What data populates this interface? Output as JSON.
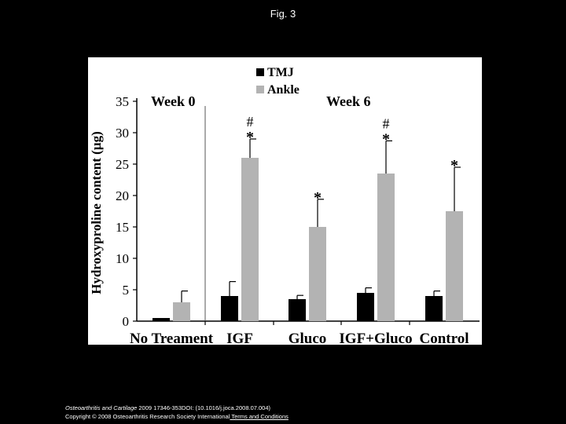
{
  "figure": {
    "title": "Fig. 3"
  },
  "caption": {
    "journal": "Osteoarthritis and Cartilage",
    "citation": " 2009 17346-353DOI: (10.1016/j.joca.2008.07.004)",
    "copyright": "Copyright © 2008 Osteoarthritis Research Society International",
    "terms_link": " Terms and Conditions"
  },
  "chart_data": {
    "type": "bar",
    "ylabel": "Hydroxyproline content (µg)",
    "ylim": [
      0,
      35
    ],
    "yticks": [
      0,
      5,
      10,
      15,
      20,
      25,
      30,
      35
    ],
    "categories": [
      "No Treament",
      "IGF",
      "Gluco",
      "IGF+Gluco",
      "Control"
    ],
    "section_labels": [
      "Week 0",
      "Week 6"
    ],
    "legend": {
      "position": "top-center"
    },
    "colors": {
      "TMJ": "#000000",
      "Ankle": "#b3b3b3",
      "background": "#ffffff"
    },
    "series": [
      {
        "name": "TMJ",
        "values": [
          0.5,
          4.0,
          3.5,
          4.5,
          4.0
        ],
        "errors": [
          0,
          2.3,
          0.6,
          0.8,
          0.8
        ]
      },
      {
        "name": "Ankle",
        "values": [
          3.0,
          26.0,
          15.0,
          23.5,
          17.5
        ],
        "errors": [
          1.8,
          3.0,
          4.4,
          5.2,
          7.0
        ]
      }
    ],
    "annotations": [
      {
        "category": "IGF",
        "labels": [
          "#",
          "*"
        ]
      },
      {
        "category": "Gluco",
        "labels": [
          "*"
        ]
      },
      {
        "category": "IGF+Gluco",
        "labels": [
          "#",
          "*"
        ]
      },
      {
        "category": "Control",
        "labels": [
          "*"
        ]
      }
    ]
  }
}
